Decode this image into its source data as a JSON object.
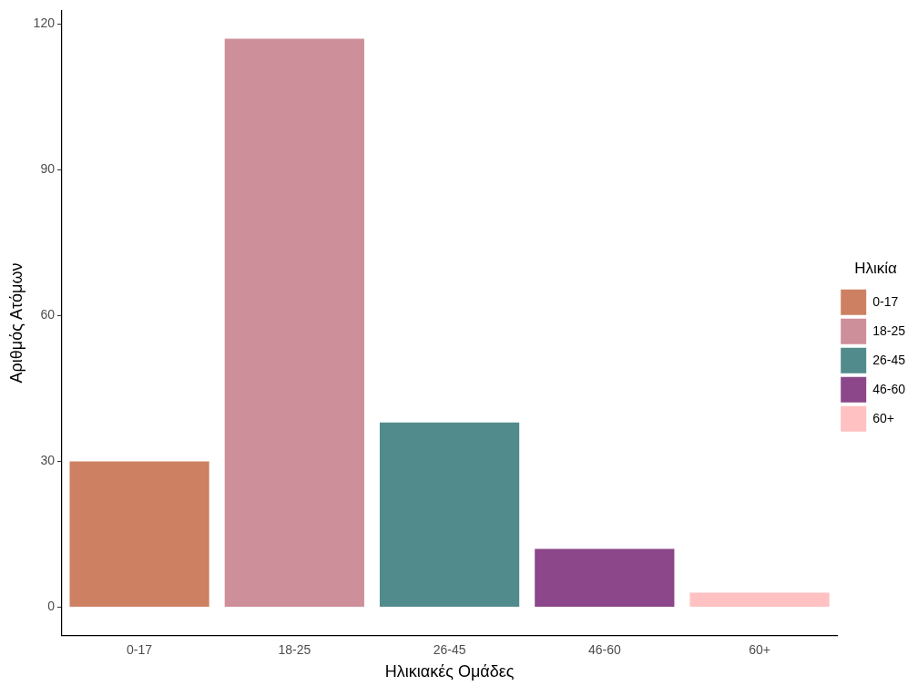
{
  "chart_data": {
    "type": "bar",
    "xlabel": "Ηλικιακές Ομάδες",
    "ylabel": "Αριθμός Ατόμων",
    "legend_title": "Ηλικία",
    "categories": [
      "0-17",
      "18-25",
      "26-45",
      "46-60",
      "60+"
    ],
    "series": [
      {
        "name": "0-17",
        "color": "#cd8162",
        "values": [
          30,
          null,
          null,
          null,
          null
        ]
      },
      {
        "name": "18-25",
        "color": "#cd8f9a",
        "values": [
          null,
          117,
          null,
          null,
          null
        ]
      },
      {
        "name": "26-45",
        "color": "#528b8b",
        "values": [
          null,
          null,
          38,
          null,
          null
        ]
      },
      {
        "name": "46-60",
        "color": "#8b4789",
        "values": [
          null,
          null,
          null,
          12,
          null
        ]
      },
      {
        "name": "60+",
        "color": "#ffc1c1",
        "values": [
          null,
          null,
          null,
          null,
          3
        ]
      }
    ],
    "ylim": [
      -5.85,
      122.85
    ],
    "yticks": [
      0,
      30,
      60,
      90,
      120
    ],
    "grid": false,
    "legend": "right"
  }
}
